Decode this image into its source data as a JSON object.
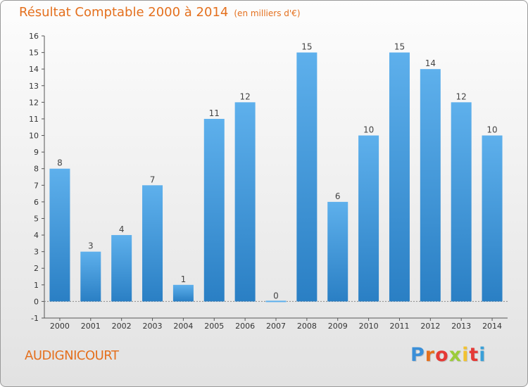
{
  "header": {
    "title": "Résultat Comptable 2000 à 2014",
    "subtitle": "(en milliers d'€)"
  },
  "footer": {
    "commune": "AUDIGNICOURT",
    "logo_text": "Proxiti",
    "logo_colors": [
      "#3a8fd8",
      "#e4701e",
      "#e53935",
      "#9ccc3a",
      "#f2c230",
      "#e53935",
      "#3aa0d8"
    ]
  },
  "colors": {
    "title": "#e4701e",
    "bar_top": "#5eb0ec",
    "bar_bottom": "#2a7fc4",
    "axis": "#555555"
  },
  "chart_data": {
    "type": "bar",
    "categories": [
      "2000",
      "2001",
      "2002",
      "2003",
      "2004",
      "2005",
      "2006",
      "2007",
      "2008",
      "2009",
      "2010",
      "2011",
      "2012",
      "2013",
      "2014"
    ],
    "values": [
      8,
      3,
      4,
      7,
      1,
      11,
      12,
      0,
      15,
      6,
      10,
      15,
      14,
      12,
      10
    ],
    "ylim": [
      -1,
      16
    ],
    "yticks": [
      -1,
      0,
      1,
      2,
      3,
      4,
      5,
      6,
      7,
      8,
      9,
      10,
      11,
      12,
      13,
      14,
      15,
      16
    ],
    "grid": false,
    "data_labels": true
  }
}
